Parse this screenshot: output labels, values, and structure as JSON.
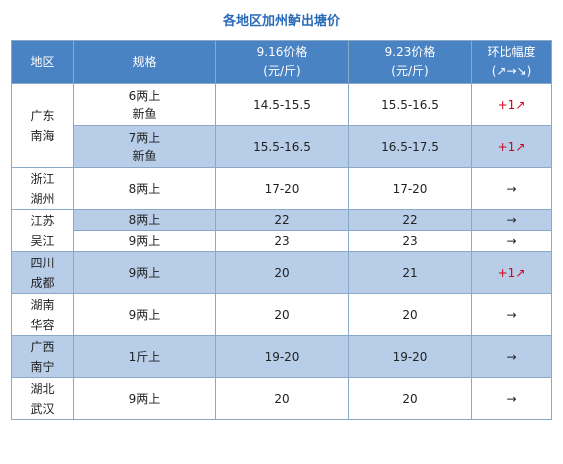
{
  "title": "各地区加州鲈出塘价",
  "headers": {
    "region": "地区",
    "spec": "规格",
    "price1_line1": "9.16价格",
    "price1_line2": "(元/斤)",
    "price2_line1": "9.23价格",
    "price2_line2": "(元/斤)",
    "change_line1": "环比幅度",
    "change_line2": "(↗→↘)"
  },
  "rows": [
    {
      "region": "广东\n南海",
      "spec": "6两上\n新鱼",
      "p1": "14.5-15.5",
      "p2": "15.5-16.5",
      "change": "+1↗"
    },
    {
      "region": "",
      "spec": "7两上\n新鱼",
      "p1": "15.5-16.5",
      "p2": "16.5-17.5",
      "change": "+1↗"
    },
    {
      "region": "浙江\n湖州",
      "spec": "8两上",
      "p1": "17-20",
      "p2": "17-20",
      "change": "→"
    },
    {
      "region": "江苏\n吴江",
      "spec": "8两上",
      "p1": "22",
      "p2": "22",
      "change": "→"
    },
    {
      "region": "",
      "spec": "9两上",
      "p1": "23",
      "p2": "23",
      "change": "→"
    },
    {
      "region": "四川\n成都",
      "spec": "9两上",
      "p1": "20",
      "p2": "21",
      "change": "+1↗"
    },
    {
      "region": "湖南\n华容",
      "spec": "9两上",
      "p1": "20",
      "p2": "20",
      "change": "→"
    },
    {
      "region": "广西\n南宁",
      "spec": "1斤上",
      "p1": "19-20",
      "p2": "19-20",
      "change": "→"
    },
    {
      "region": "湖北\n武汉",
      "spec": "9两上",
      "p1": "20",
      "p2": "20",
      "change": "→"
    }
  ]
}
